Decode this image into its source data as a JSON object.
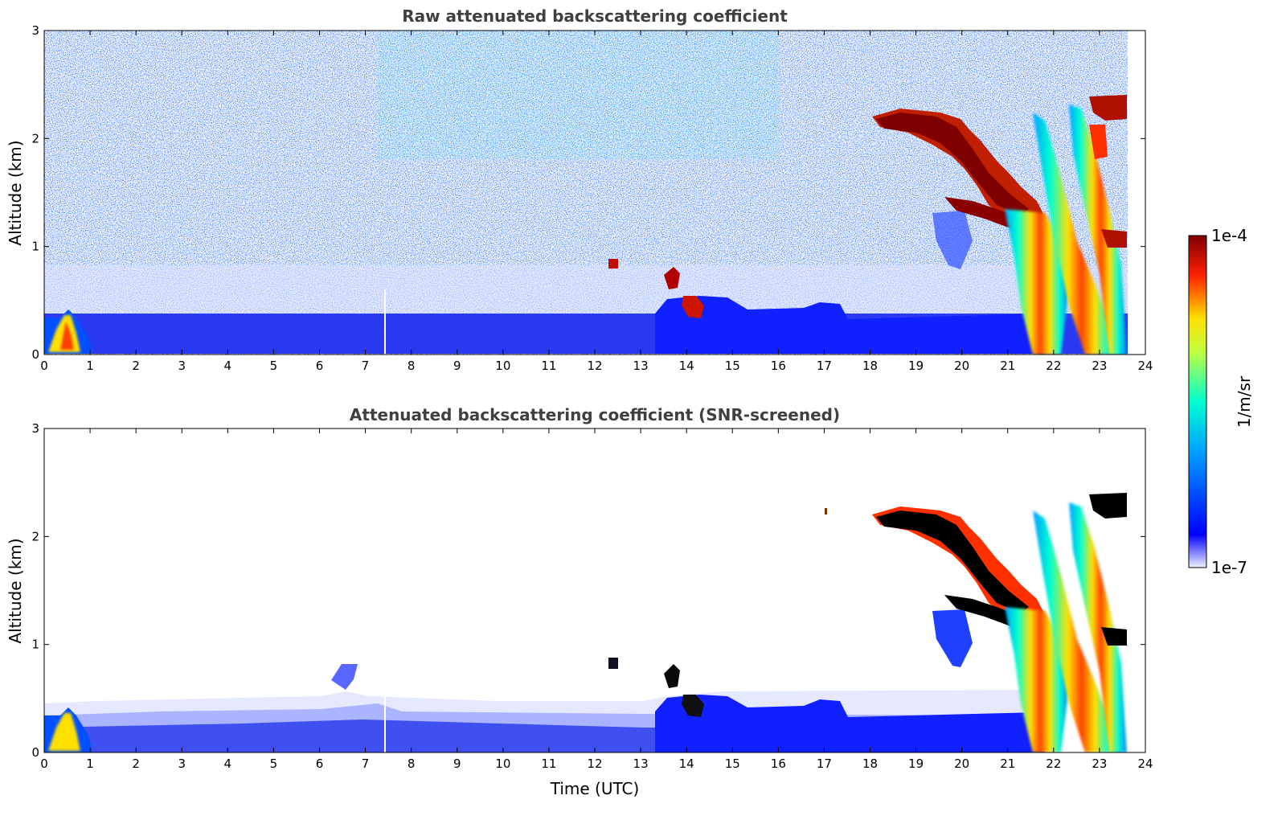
{
  "chart_data": [
    {
      "type": "heatmap",
      "title": "Raw attenuated backscattering coefficient",
      "xlabel": "",
      "ylabel": "Altitude (km)",
      "xlim": [
        0,
        24
      ],
      "ylim": [
        0,
        3
      ],
      "xticks": [
        "0",
        "1",
        "2",
        "3",
        "4",
        "5",
        "6",
        "7",
        "8",
        "9",
        "10",
        "11",
        "12",
        "13",
        "14",
        "15",
        "16",
        "17",
        "18",
        "19",
        "20",
        "21",
        "22",
        "23",
        "24"
      ],
      "yticks": [
        "0",
        "1",
        "2",
        "3"
      ],
      "data_end_hour": 23.6,
      "features": [
        {
          "feature": "boundary layer aerosol",
          "x_range": [
            0.9,
            23.6
          ],
          "y_range": [
            0,
            0.4
          ],
          "level": "low"
        },
        {
          "feature": "low cloud",
          "x_range": [
            0.3,
            0.9
          ],
          "y_range": [
            0,
            0.4
          ],
          "level": "high"
        },
        {
          "feature": "elevated aerosol",
          "x_range": [
            13.5,
            17.5
          ],
          "y_range": [
            0,
            0.55
          ],
          "level": "low"
        },
        {
          "feature": "cloud",
          "x_range": [
            13.6,
            14.4
          ],
          "y_range": [
            0.35,
            0.8
          ],
          "level": "max"
        },
        {
          "feature": "descending cloud layer",
          "x_range": [
            18,
            23.6
          ],
          "y_range": [
            1.2,
            2.3
          ],
          "level": "max"
        },
        {
          "feature": "precipitation fall streaks",
          "x_range": [
            21.3,
            23.6
          ],
          "y_range": [
            0,
            2.2
          ],
          "level": "high"
        }
      ]
    },
    {
      "type": "heatmap",
      "title": "Attenuated backscattering coefficient (SNR-screened)",
      "xlabel": "Time (UTC)",
      "ylabel": "Altitude (km)",
      "xlim": [
        0,
        24
      ],
      "ylim": [
        0,
        3
      ],
      "xticks": [
        "0",
        "1",
        "2",
        "3",
        "4",
        "5",
        "6",
        "7",
        "8",
        "9",
        "10",
        "11",
        "12",
        "13",
        "14",
        "15",
        "16",
        "17",
        "18",
        "19",
        "20",
        "21",
        "22",
        "23",
        "24"
      ],
      "yticks": [
        "0",
        "1",
        "2",
        "3"
      ],
      "data_end_hour": 23.6
    }
  ],
  "colorbar": {
    "label": "1/m/sr",
    "max_label": "1e-4",
    "min_label": "1e-7",
    "scale": "log",
    "range": [
      1e-07,
      0.0001
    ],
    "colormap": "jet"
  }
}
